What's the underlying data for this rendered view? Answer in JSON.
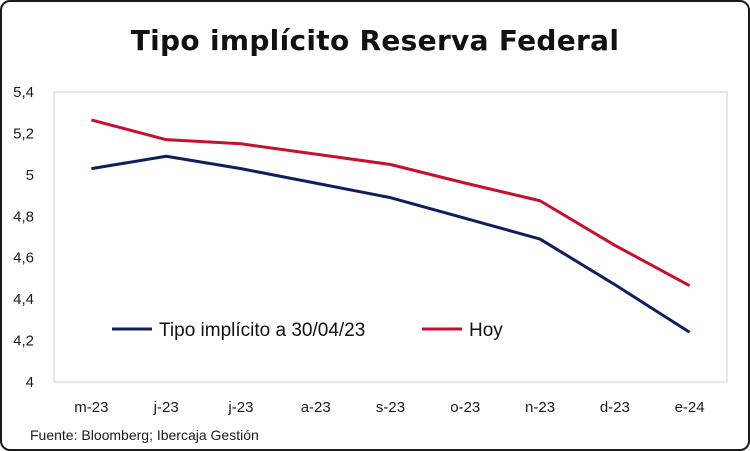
{
  "chart_data": {
    "type": "line",
    "title": "Tipo implícito Reserva Federal",
    "categories": [
      "m-23",
      "j-23",
      "j-23",
      "a-23",
      "s-23",
      "o-23",
      "n-23",
      "d-23",
      "e-24"
    ],
    "series": [
      {
        "name": "Tipo implícito a 30/04/23",
        "color": "#0f1f5c",
        "values": [
          5.03,
          5.09,
          5.03,
          4.96,
          4.89,
          4.79,
          4.69,
          4.47,
          4.24
        ]
      },
      {
        "name": "Hoy",
        "color": "#c8102e",
        "values": [
          5.265,
          5.17,
          5.15,
          5.1,
          5.05,
          4.96,
          4.875,
          4.66,
          4.465
        ]
      }
    ],
    "yticks": [
      "5,4",
      "5,2",
      "5",
      "4,8",
      "4,6",
      "4,4",
      "4,2",
      "4"
    ],
    "ylim": [
      4,
      5.4
    ],
    "grid": false,
    "legend": "bottom-left, inside plot",
    "source": "Fuente: Bloomberg; Ibercaja Gestión"
  }
}
